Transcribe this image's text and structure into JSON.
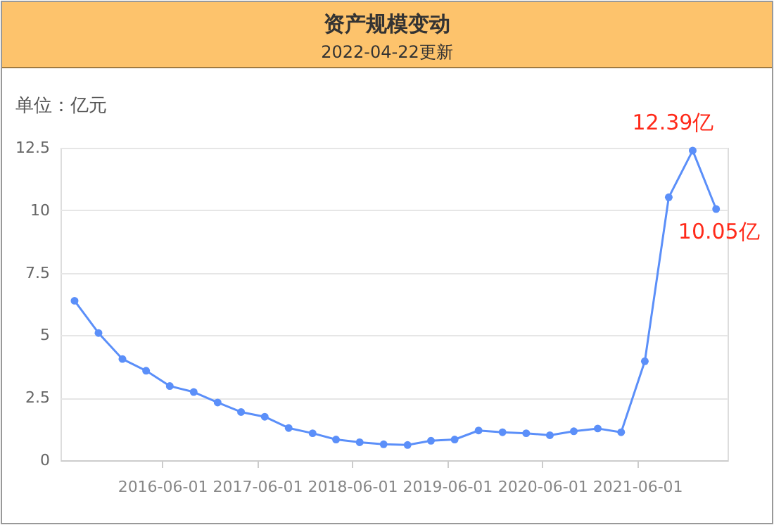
{
  "chart_data": {
    "type": "line",
    "title": "资产规模变动",
    "subtitle": "2022-04-22更新",
    "ylabel": "单位：亿元",
    "x": [
      "2015-06-30",
      "2015-09-30",
      "2015-12-31",
      "2016-03-31",
      "2016-06-30",
      "2016-09-30",
      "2016-12-31",
      "2017-03-31",
      "2017-06-30",
      "2017-09-30",
      "2017-12-31",
      "2018-03-31",
      "2018-06-30",
      "2018-09-30",
      "2018-12-31",
      "2019-03-31",
      "2019-06-30",
      "2019-09-30",
      "2019-12-31",
      "2020-03-31",
      "2020-06-30",
      "2020-09-30",
      "2020-12-31",
      "2021-03-31",
      "2021-06-30",
      "2021-09-30",
      "2021-12-31",
      "2022-03-31"
    ],
    "series": [
      {
        "color": "#5b8ff9",
        "values": [
          6.38,
          5.09,
          4.05,
          3.58,
          2.97,
          2.73,
          2.31,
          1.93,
          1.74,
          1.29,
          1.08,
          0.83,
          0.72,
          0.64,
          0.61,
          0.78,
          0.83,
          1.19,
          1.12,
          1.08,
          1.0,
          1.16,
          1.27,
          1.12,
          3.96,
          10.52,
          12.39,
          10.05
        ]
      }
    ],
    "xlim": [
      "2015-05-07",
      "2022-05-14"
    ],
    "xticks": [
      "2016-06-01",
      "2017-06-01",
      "2018-06-01",
      "2019-06-01",
      "2020-06-01",
      "2021-06-01"
    ],
    "ylim": [
      0,
      12.5
    ],
    "yticks": [
      0,
      2.5,
      5,
      7.5,
      10,
      12.5
    ],
    "annotations": [
      {
        "text": "12.39亿",
        "x": "2021-12-31",
        "y": 12.39
      },
      {
        "text": "10.05亿",
        "x": "2022-03-31",
        "y": 10.05
      }
    ],
    "grid": "y",
    "marker": "circle",
    "line_style": "solid"
  }
}
